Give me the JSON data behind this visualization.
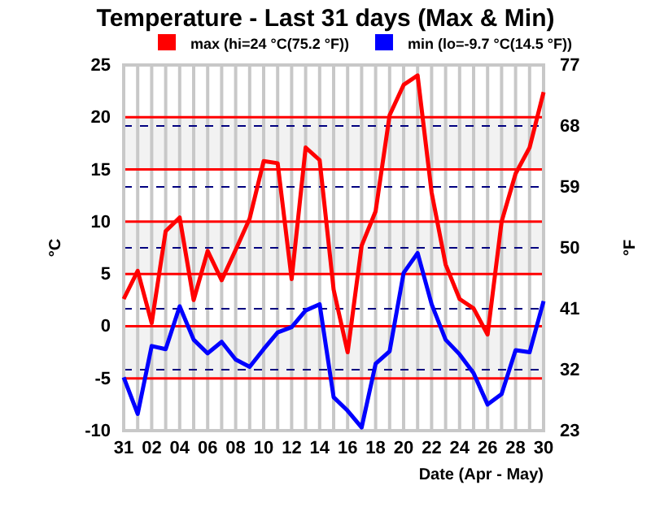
{
  "chart_data": {
    "type": "line",
    "title": "Temperature - Last 31 days (Max & Min)",
    "xlabel": "Date (Apr - May)",
    "ylabel": "°C",
    "y2label": "°F",
    "categories": [
      "31",
      null,
      "02",
      null,
      "04",
      null,
      "06",
      null,
      "08",
      null,
      "10",
      null,
      "12",
      null,
      "14",
      null,
      "16",
      null,
      "18",
      null,
      "20",
      null,
      "22",
      null,
      "24",
      null,
      "26",
      null,
      "28",
      null,
      "30"
    ],
    "series": [
      {
        "name": "max (hi=24 °C(75.2 °F))",
        "color": "#ff0000",
        "values": [
          2.6,
          5.3,
          0.3,
          9.1,
          10.4,
          2.5,
          7.2,
          4.4,
          7.3,
          10.3,
          15.8,
          15.6,
          4.5,
          17.1,
          15.9,
          3.5,
          -2.5,
          7.7,
          11,
          20.2,
          23.1,
          24,
          12.8,
          5.9,
          2.6,
          1.7,
          -0.8,
          10,
          14.6,
          17.1,
          22.4
        ]
      },
      {
        "name": "min (lo=-9.7 °C(14.5 °F))",
        "color": "#0000ff",
        "values": [
          -4.9,
          -8.4,
          -1.9,
          -2.2,
          1.9,
          -1.3,
          -2.6,
          -1.5,
          -3.2,
          -3.9,
          -2.2,
          -0.6,
          -0.1,
          1.5,
          2.1,
          -6.8,
          -8.1,
          -9.7,
          -3.6,
          -2.4,
          5.1,
          7,
          2.1,
          -1.3,
          -2.7,
          -4.5,
          -7.5,
          -6.5,
          -2.3,
          -2.5,
          2.4
        ]
      }
    ],
    "ylim": [
      -10,
      25
    ],
    "yticks": [
      -10,
      -5,
      0,
      5,
      10,
      15,
      20,
      25
    ],
    "y2lim": [
      23,
      77
    ],
    "y2ticks": [
      23,
      32,
      41,
      50,
      59,
      68,
      77
    ],
    "bands": [
      {
        "axis": "y",
        "from": 15,
        "to": 20,
        "color": "#f2f2f2"
      },
      {
        "axis": "y",
        "from": 5,
        "to": 10,
        "color": "#f2f2f2"
      },
      {
        "axis": "y",
        "from": -5,
        "to": 0,
        "color": "#f2f2f2"
      }
    ],
    "grid": true,
    "legend": "top",
    "marker": "none",
    "line_style": "solid"
  }
}
